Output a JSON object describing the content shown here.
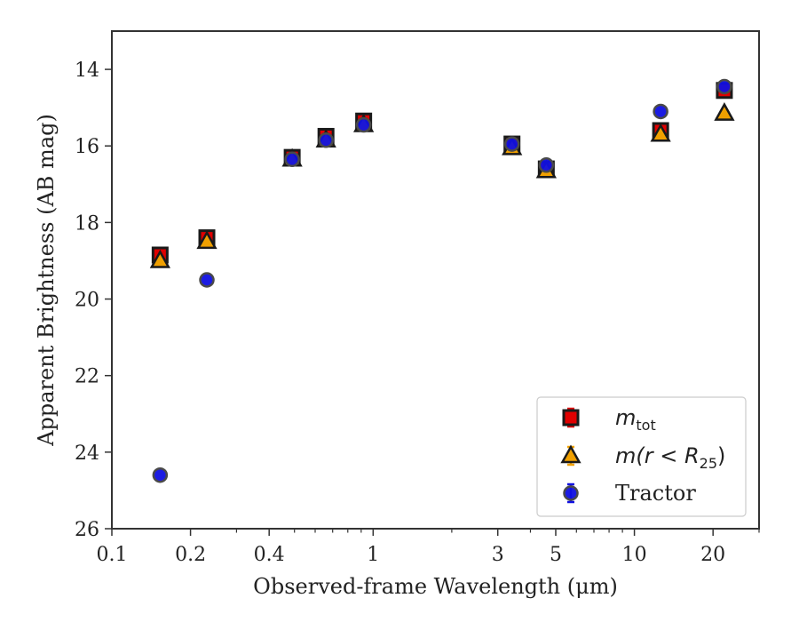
{
  "chart_data": {
    "type": "scatter",
    "title": "",
    "xlabel": "Observed-frame Wavelength (μm)",
    "ylabel": "Apparent Brightness (AB mag)",
    "xscale": "log",
    "xlim": [
      0.1,
      30
    ],
    "ylim": [
      26,
      13
    ],
    "y_inverted": true,
    "grid": false,
    "legend_position": "bottom-right",
    "x_ticks": [
      {
        "value": 0.1,
        "label": "0.1"
      },
      {
        "value": 0.2,
        "label": "0.2"
      },
      {
        "value": 0.4,
        "label": "0.4"
      },
      {
        "value": 1,
        "label": "1"
      },
      {
        "value": 3,
        "label": "3"
      },
      {
        "value": 5,
        "label": "5"
      },
      {
        "value": 10,
        "label": "10"
      },
      {
        "value": 20,
        "label": "20"
      }
    ],
    "y_ticks": [
      {
        "value": 14,
        "label": "14"
      },
      {
        "value": 16,
        "label": "16"
      },
      {
        "value": 18,
        "label": "18"
      },
      {
        "value": 20,
        "label": "20"
      },
      {
        "value": 22,
        "label": "22"
      },
      {
        "value": 24,
        "label": "24"
      },
      {
        "value": 26,
        "label": "26"
      }
    ],
    "series": [
      {
        "name": "m_tot",
        "legend_label": "m",
        "legend_sub": "tot",
        "marker": "square",
        "color": "#e00000",
        "errorbar_color": "#e00000",
        "points": [
          {
            "x": 0.153,
            "y": 18.85
          },
          {
            "x": 0.231,
            "y": 18.4
          },
          {
            "x": 0.49,
            "y": 16.3
          },
          {
            "x": 0.66,
            "y": 15.75
          },
          {
            "x": 0.92,
            "y": 15.35
          },
          {
            "x": 3.4,
            "y": 15.95
          },
          {
            "x": 4.6,
            "y": 16.6
          },
          {
            "x": 12.6,
            "y": 15.6
          },
          {
            "x": 22.1,
            "y": 14.55
          }
        ]
      },
      {
        "name": "m(r < R_25)",
        "legend_label": "m(r < R",
        "legend_sub": "25",
        "legend_suffix": ")",
        "marker": "triangle",
        "color": "#f0a000",
        "errorbar_color": "#f0a000",
        "points": [
          {
            "x": 0.153,
            "y": 19.0
          },
          {
            "x": 0.231,
            "y": 18.5
          },
          {
            "x": 0.49,
            "y": 16.35
          },
          {
            "x": 0.66,
            "y": 15.85
          },
          {
            "x": 0.92,
            "y": 15.45
          },
          {
            "x": 3.4,
            "y": 16.05
          },
          {
            "x": 4.6,
            "y": 16.65
          },
          {
            "x": 12.6,
            "y": 15.7
          },
          {
            "x": 22.1,
            "y": 15.15
          }
        ]
      },
      {
        "name": "Tractor",
        "legend_label": "Tractor",
        "marker": "circle",
        "color": "#1010e0",
        "errorbar_color": "#1010e0",
        "points": [
          {
            "x": 0.153,
            "y": 24.6
          },
          {
            "x": 0.231,
            "y": 19.5
          },
          {
            "x": 0.49,
            "y": 16.35
          },
          {
            "x": 0.66,
            "y": 15.85
          },
          {
            "x": 0.92,
            "y": 15.45
          },
          {
            "x": 3.4,
            "y": 15.95
          },
          {
            "x": 4.6,
            "y": 16.5
          },
          {
            "x": 12.6,
            "y": 15.1
          },
          {
            "x": 22.1,
            "y": 14.45
          }
        ]
      }
    ]
  }
}
